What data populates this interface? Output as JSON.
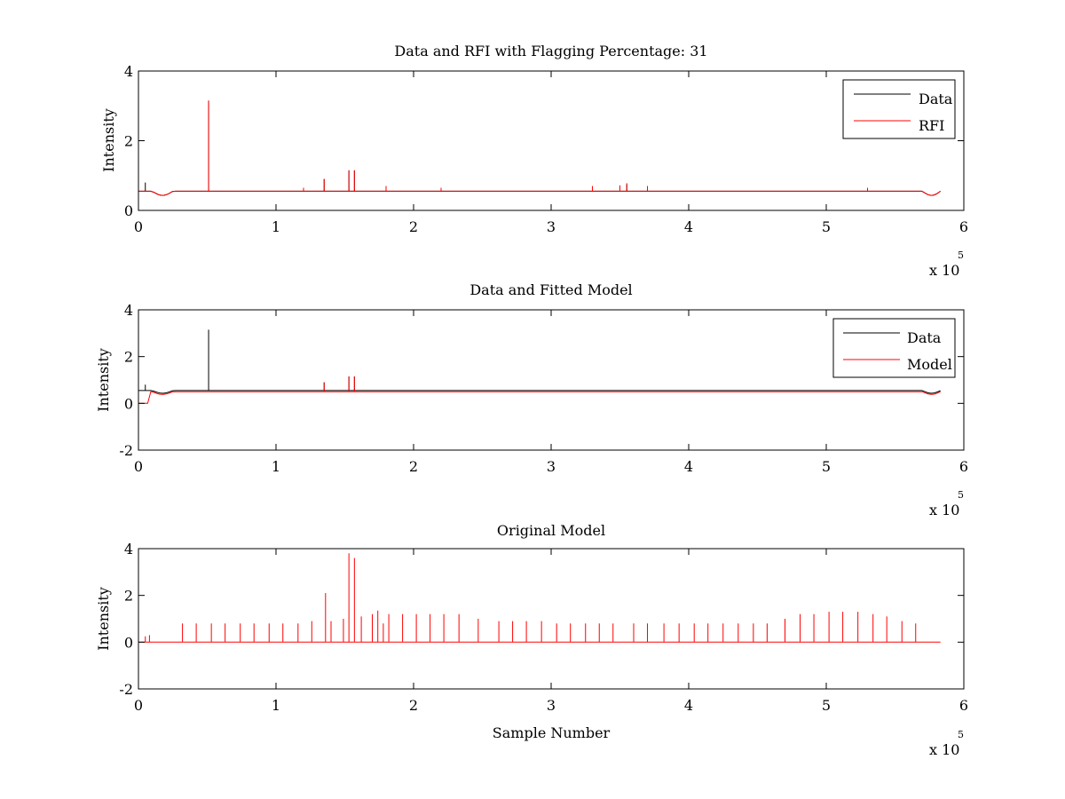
{
  "colors": {
    "data": "#000000",
    "rfi": "#ff0000",
    "model": "#ff0000",
    "axes": "#000000",
    "background": "#ffffff"
  },
  "chart_data": [
    {
      "type": "line",
      "title": "Data and RFI with Flagging Percentage: 31",
      "xlabel": "",
      "ylabel": "Intensity",
      "xlim": [
        0,
        600000
      ],
      "ylim": [
        0,
        4
      ],
      "x_ticks": [
        0,
        1,
        2,
        3,
        4,
        5,
        6
      ],
      "y_ticks": [
        0,
        2,
        4
      ],
      "x_tick_labels": [
        "0",
        "1",
        "2",
        "3",
        "4",
        "5",
        "6"
      ],
      "y_tick_labels": [
        "0",
        "2",
        "4"
      ],
      "x_exponent": {
        "base": "x 10",
        "power": "5"
      },
      "grid": false,
      "legend": {
        "placement": "top-right",
        "entries": [
          "Data",
          "RFI"
        ]
      },
      "series": [
        {
          "name": "Data",
          "color": "#000000",
          "baseline": 0.55,
          "x_end": 583000,
          "spikes": [
            [
              51000,
              3.15
            ],
            [
              135000,
              0.9
            ],
            [
              153000,
              1.15
            ],
            [
              157000,
              1.15
            ],
            [
              350000,
              0.7
            ],
            [
              355000,
              0.75
            ],
            [
              5000,
              0.8
            ]
          ]
        },
        {
          "name": "RFI",
          "color": "#ff0000",
          "baseline": 0.55,
          "x_end": 583000,
          "spikes": [
            [
              51000,
              3.15
            ],
            [
              135000,
              0.9
            ],
            [
              153000,
              1.15
            ],
            [
              157000,
              1.15
            ],
            [
              120000,
              0.65
            ],
            [
              180000,
              0.7
            ],
            [
              220000,
              0.65
            ],
            [
              330000,
              0.7
            ],
            [
              350000,
              0.72
            ],
            [
              355000,
              0.78
            ],
            [
              370000,
              0.7
            ],
            [
              530000,
              0.65
            ]
          ]
        }
      ]
    },
    {
      "type": "line",
      "title": "Data and Fitted Model",
      "xlabel": "",
      "ylabel": "Intensity",
      "xlim": [
        0,
        600000
      ],
      "ylim": [
        -2,
        4
      ],
      "x_ticks": [
        0,
        1,
        2,
        3,
        4,
        5,
        6
      ],
      "y_ticks": [
        -2,
        0,
        2,
        4
      ],
      "x_tick_labels": [
        "0",
        "1",
        "2",
        "3",
        "4",
        "5",
        "6"
      ],
      "y_tick_labels": [
        "-2",
        "0",
        "2",
        "4"
      ],
      "x_exponent": {
        "base": "x 10",
        "power": "5"
      },
      "grid": false,
      "legend": {
        "placement": "top-right",
        "entries": [
          "Data",
          "Model"
        ]
      },
      "series": [
        {
          "name": "Data",
          "color": "#000000",
          "baseline": 0.55,
          "x_end": 583000,
          "spikes": [
            [
              51000,
              3.15
            ],
            [
              135000,
              0.9
            ],
            [
              153000,
              1.15
            ],
            [
              157000,
              1.15
            ],
            [
              5000,
              0.8
            ]
          ]
        },
        {
          "name": "Model",
          "color": "#ff0000",
          "baseline": 0.5,
          "x_end": 583000,
          "spikes": [
            [
              135000,
              0.9
            ],
            [
              153000,
              1.15
            ],
            [
              157000,
              1.15
            ]
          ]
        }
      ]
    },
    {
      "type": "line",
      "title": "Original Model",
      "xlabel": "Sample Number",
      "ylabel": "Intensity",
      "xlim": [
        0,
        600000
      ],
      "ylim": [
        -2,
        4
      ],
      "x_ticks": [
        0,
        1,
        2,
        3,
        4,
        5,
        6
      ],
      "y_ticks": [
        -2,
        0,
        2,
        4
      ],
      "x_tick_labels": [
        "0",
        "1",
        "2",
        "3",
        "4",
        "5",
        "6"
      ],
      "y_tick_labels": [
        "-2",
        "0",
        "2",
        "4"
      ],
      "x_exponent": {
        "base": "x 10",
        "power": "5"
      },
      "grid": false,
      "legend": null,
      "series": [
        {
          "name": "",
          "color": "#ff0000",
          "baseline": 0.0,
          "x_end": 583000,
          "spikes": [
            [
              5000,
              0.25
            ],
            [
              8000,
              0.3
            ],
            [
              32000,
              0.8
            ],
            [
              42000,
              0.8
            ],
            [
              53000,
              0.8
            ],
            [
              63000,
              0.8
            ],
            [
              74000,
              0.8
            ],
            [
              84000,
              0.8
            ],
            [
              95000,
              0.8
            ],
            [
              105000,
              0.8
            ],
            [
              116000,
              0.8
            ],
            [
              126000,
              0.9
            ],
            [
              136000,
              2.1
            ],
            [
              140000,
              0.9
            ],
            [
              149000,
              1.0
            ],
            [
              153000,
              3.8
            ],
            [
              157000,
              3.6
            ],
            [
              162000,
              1.1
            ],
            [
              170000,
              1.2
            ],
            [
              174000,
              1.35
            ],
            [
              178000,
              0.8
            ],
            [
              182000,
              1.2
            ],
            [
              192000,
              1.2
            ],
            [
              202000,
              1.2
            ],
            [
              212000,
              1.2
            ],
            [
              222000,
              1.2
            ],
            [
              233000,
              1.2
            ],
            [
              247000,
              1.0
            ],
            [
              262000,
              0.9
            ],
            [
              272000,
              0.9
            ],
            [
              282000,
              0.9
            ],
            [
              293000,
              0.9
            ],
            [
              304000,
              0.8
            ],
            [
              314000,
              0.8
            ],
            [
              325000,
              0.8
            ],
            [
              335000,
              0.8
            ],
            [
              345000,
              0.8
            ],
            [
              360000,
              0.8
            ],
            [
              370000,
              0.8
            ],
            [
              382000,
              0.8
            ],
            [
              393000,
              0.8
            ],
            [
              404000,
              0.8
            ],
            [
              414000,
              0.8
            ],
            [
              425000,
              0.8
            ],
            [
              436000,
              0.8
            ],
            [
              447000,
              0.8
            ],
            [
              457000,
              0.8
            ],
            [
              470000,
              1.0
            ],
            [
              481000,
              1.2
            ],
            [
              491000,
              1.2
            ],
            [
              502000,
              1.3
            ],
            [
              512000,
              1.3
            ],
            [
              523000,
              1.3
            ],
            [
              534000,
              1.2
            ],
            [
              544000,
              1.1
            ],
            [
              555000,
              0.9
            ],
            [
              565000,
              0.8
            ]
          ]
        }
      ]
    }
  ]
}
